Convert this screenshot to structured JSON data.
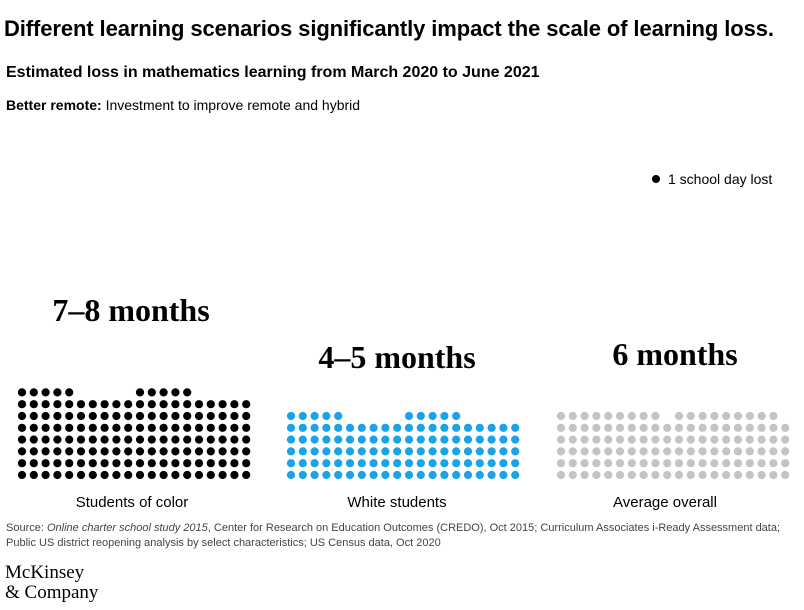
{
  "title": "Different learning scenarios significantly impact the scale of learning loss.",
  "subtitle": "Estimated loss in mathematics learning from March 2020 to June 2021",
  "scenario": {
    "label": "Better remote:",
    "text": "Investment to improve remote and hybrid"
  },
  "legend": {
    "label": "1 school day lost",
    "color": "#000000"
  },
  "chart_data": {
    "type": "dot-matrix",
    "unit": "1 school day lost",
    "series": [
      {
        "category": "Students of color",
        "headline": "7–8 months",
        "dots": 150,
        "color": "#000000"
      },
      {
        "category": "White students",
        "headline": "4–5 months",
        "dots": 110,
        "color": "#1aa3e8"
      },
      {
        "category": "Average overall",
        "headline": "6 months",
        "dots": 118,
        "color": "#c4c4c4"
      }
    ]
  },
  "source": {
    "prefix": "Source: ",
    "italic": "Online charter school study 2015",
    "rest": ", Center for Research on Education Outcomes (CREDO), Oct 2015; Curriculum Associates i-Ready Assessment data; Public US district reopening analysis by select characteristics; US Census data, Oct 2020"
  },
  "logo": {
    "line1": "McKinsey",
    "line2": "& Company"
  }
}
